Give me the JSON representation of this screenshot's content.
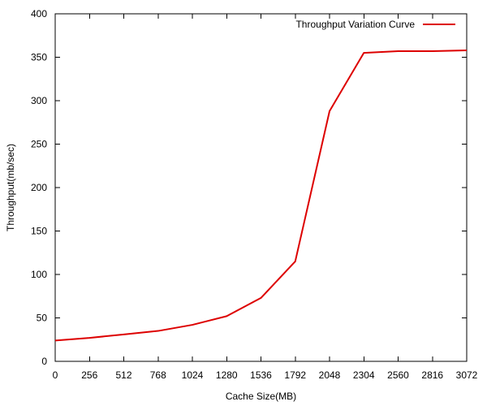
{
  "chart_data": {
    "type": "line",
    "title": "",
    "xlabel": "Cache Size(MB)",
    "ylabel": "Throughput(mb/sec)",
    "xlim": [
      0,
      3072
    ],
    "ylim": [
      0,
      400
    ],
    "x_ticks": [
      0,
      256,
      512,
      768,
      1024,
      1280,
      1536,
      1792,
      2048,
      2304,
      2560,
      2816,
      3072
    ],
    "y_ticks": [
      0,
      50,
      100,
      150,
      200,
      250,
      300,
      350,
      400
    ],
    "grid": false,
    "legend_position": "top-right",
    "series": [
      {
        "name": "Throughput Variation Curve",
        "color": "#dd0000",
        "x": [
          0,
          256,
          512,
          768,
          1024,
          1280,
          1536,
          1792,
          2048,
          2304,
          2560,
          2816,
          3072
        ],
        "y": [
          24,
          27,
          31,
          35,
          42,
          52,
          73,
          115,
          288,
          355,
          357,
          357,
          358
        ]
      }
    ]
  }
}
